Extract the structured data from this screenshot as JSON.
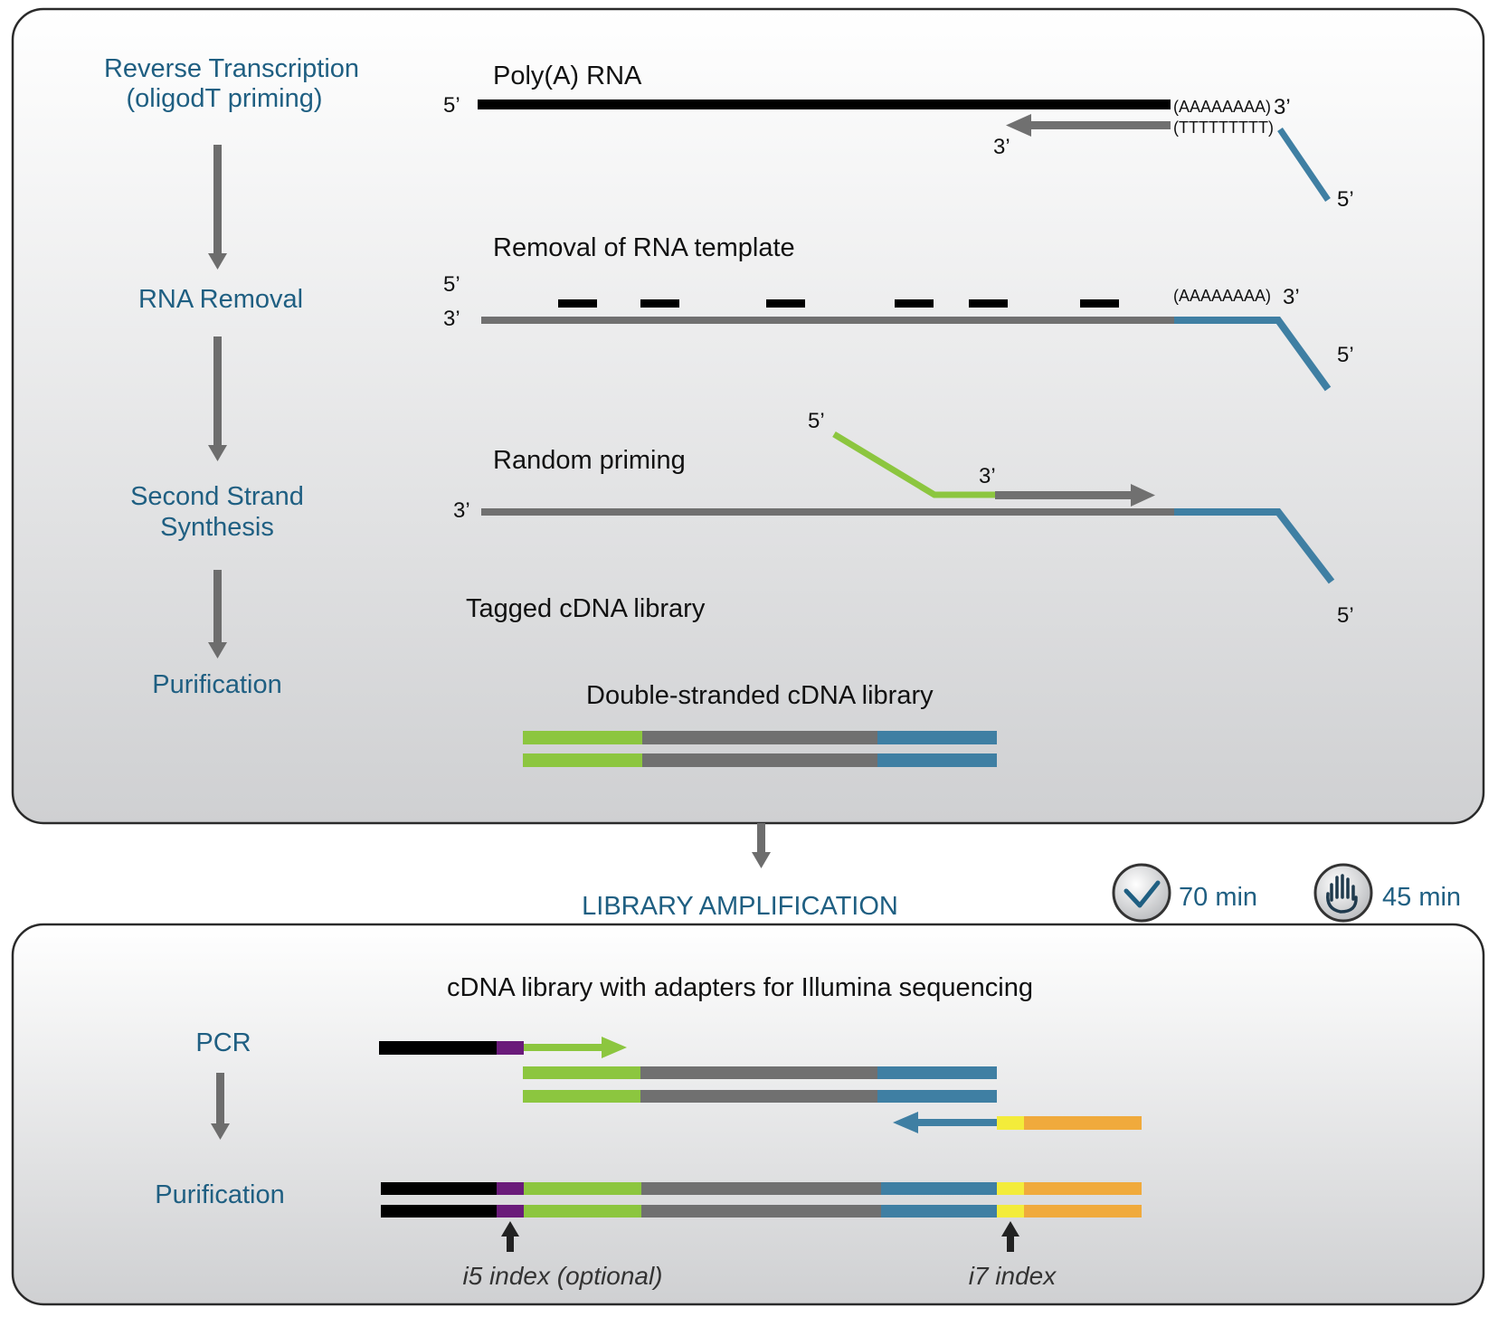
{
  "colors": {
    "step_text": "#1f5f82",
    "rna": "#000000",
    "cdna": "#707070",
    "oligo": "#3f7fa3",
    "primer": "#8cc63f",
    "i5": "#6a1b7a",
    "i7": "#f3ec3a",
    "adapter_p7": "#f0aa3c",
    "adapter_p5": "#000000"
  },
  "steps_top": [
    "Reverse Transcription",
    "(oligodT priming)",
    "RNA Removal",
    "Second Strand",
    "Synthesis",
    "Purification"
  ],
  "labels": {
    "polya_rna": "Poly(A) RNA",
    "removal": "Removal of RNA template",
    "random": "Random priming",
    "tagged": "Tagged cDNA library",
    "double": "Double-stranded cDNA library",
    "amp": "LIBRARY AMPLIFICATION",
    "adapters": "cDNA library with adapters for Illumina sequencing",
    "polyA_seq": "(AAAAAAAA)",
    "polyT_seq": "(TTTTTTTTT)",
    "five": "5’",
    "three": "3’"
  },
  "times": {
    "total": "70 min",
    "hands_on": "45 min"
  },
  "icons": [
    "clock-check-icon",
    "hand-icon"
  ],
  "steps_bottom": [
    "PCR",
    "Purification"
  ],
  "index_labels": {
    "i5": "i5 index (optional)",
    "i7": "i7 index"
  }
}
